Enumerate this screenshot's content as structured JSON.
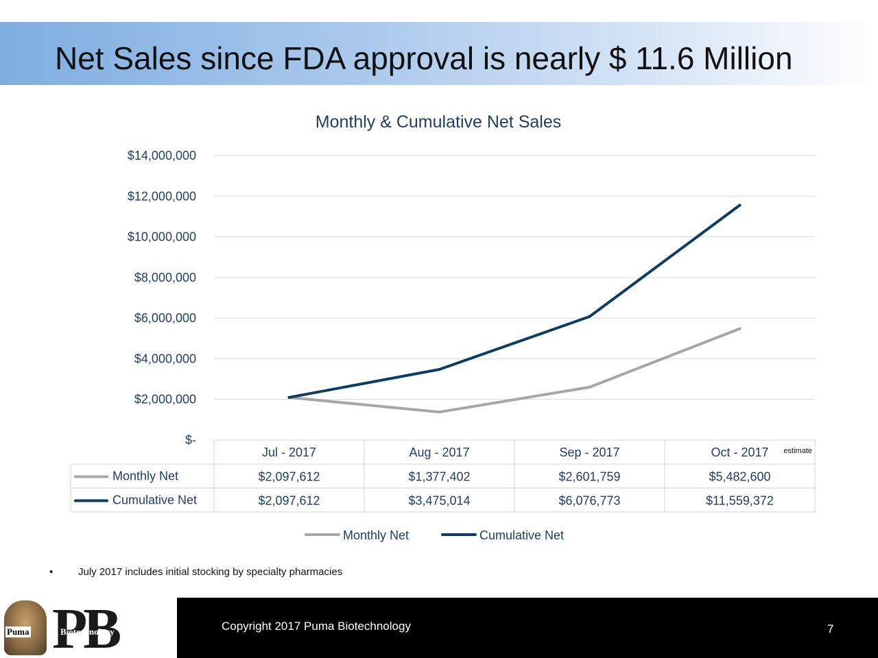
{
  "slide": {
    "title": "Net Sales since FDA approval is nearly $ 11.6 Million",
    "footnote_bullet": "•",
    "footnote": "July 2017 includes initial stocking by specialty pharmacies",
    "copyright": "Copyright 2017 Puma Biotechnology",
    "page_number": "7",
    "logo_word_1": "Puma",
    "logo_word_2": "Biotechnology",
    "logo_letters": "PB"
  },
  "chart_data": {
    "type": "line",
    "title": "Monthly & Cumulative Net Sales",
    "xlabel": "",
    "ylabel": "",
    "categories": [
      "Jul - 2017",
      "Aug - 2017",
      "Sep - 2017",
      "Oct - 2017"
    ],
    "category_note": {
      "index": 3,
      "text": "estimate"
    },
    "ylim": [
      0,
      14000000
    ],
    "yticks": [
      {
        "value": 0,
        "label": "$-"
      },
      {
        "value": 2000000,
        "label": "$2,000,000"
      },
      {
        "value": 4000000,
        "label": "$4,000,000"
      },
      {
        "value": 6000000,
        "label": "$6,000,000"
      },
      {
        "value": 8000000,
        "label": "$8,000,000"
      },
      {
        "value": 10000000,
        "label": "$10,000,000"
      },
      {
        "value": 12000000,
        "label": "$12,000,000"
      },
      {
        "value": 14000000,
        "label": "$14,000,000"
      }
    ],
    "grid": true,
    "legend_placement": "bottom",
    "series": [
      {
        "name": "Monthly Net",
        "color": "#a6a6a6",
        "values": [
          2097612,
          1377402,
          2601759,
          5482600
        ],
        "labels": [
          "$2,097,612",
          "$1,377,402",
          "$2,601,759",
          "$5,482,600"
        ]
      },
      {
        "name": "Cumulative Net",
        "color": "#0e3d63",
        "values": [
          2097612,
          3475014,
          6076773,
          11559372
        ],
        "labels": [
          "$2,097,612",
          "$3,475,014",
          "$6,076,773",
          "$11,559,372"
        ]
      }
    ],
    "colors": {
      "title": "#1f3e64",
      "axis_text": "#1f3e64",
      "grid": "#d9d9d9",
      "table_border": "#d0d0d0"
    }
  }
}
